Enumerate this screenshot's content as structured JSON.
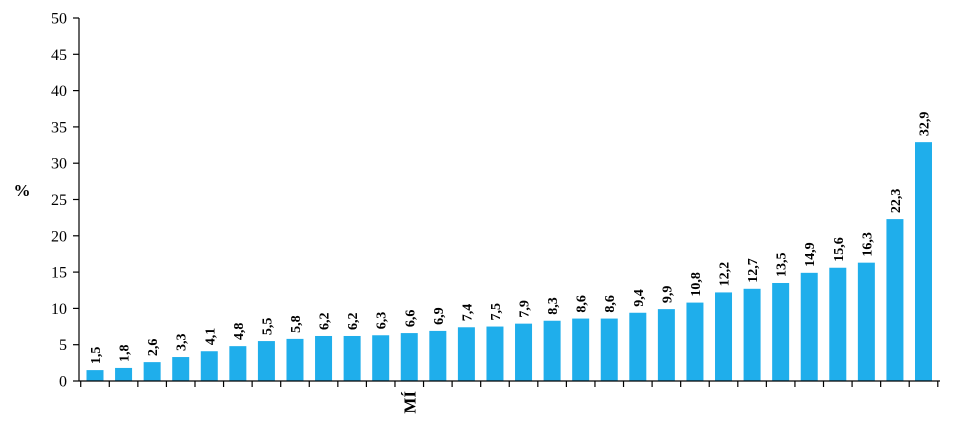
{
  "chart_data": {
    "type": "bar",
    "ylabel": "%",
    "xlabel": "",
    "ylim": [
      0,
      50
    ],
    "yticks": [
      0,
      5,
      10,
      15,
      20,
      25,
      30,
      35,
      40,
      45,
      50
    ],
    "grid": false,
    "legend": "none",
    "bar_color": "#1FAEEB",
    "categories": [
      "",
      "",
      "",
      "",
      "",
      "",
      "",
      "",
      "",
      "",
      "",
      "MÍ",
      "",
      "",
      "",
      "",
      "",
      "",
      "",
      "",
      "",
      "",
      "",
      "",
      "",
      "",
      "",
      "",
      "",
      ""
    ],
    "data_labels": [
      "1,5",
      "1,8",
      "2,6",
      "3,3",
      "4,1",
      "4,8",
      "5,5",
      "5,8",
      "6,2",
      "6,2",
      "6,3",
      "6,6",
      "6,9",
      "7,4",
      "7,5",
      "7,9",
      "8,3",
      "8,6",
      "8,6",
      "9,4",
      "9,9",
      "10,8",
      "12,2",
      "12,7",
      "13,5",
      "14,9",
      "15,6",
      "16,3",
      "22,3",
      "32,9"
    ],
    "values": [
      1.5,
      1.8,
      2.6,
      3.3,
      4.1,
      4.8,
      5.5,
      5.8,
      6.2,
      6.2,
      6.3,
      6.6,
      6.9,
      7.4,
      7.5,
      7.9,
      8.3,
      8.6,
      8.6,
      9.4,
      9.9,
      10.8,
      12.2,
      12.7,
      13.5,
      14.9,
      15.6,
      16.3,
      22.3,
      32.9
    ]
  }
}
